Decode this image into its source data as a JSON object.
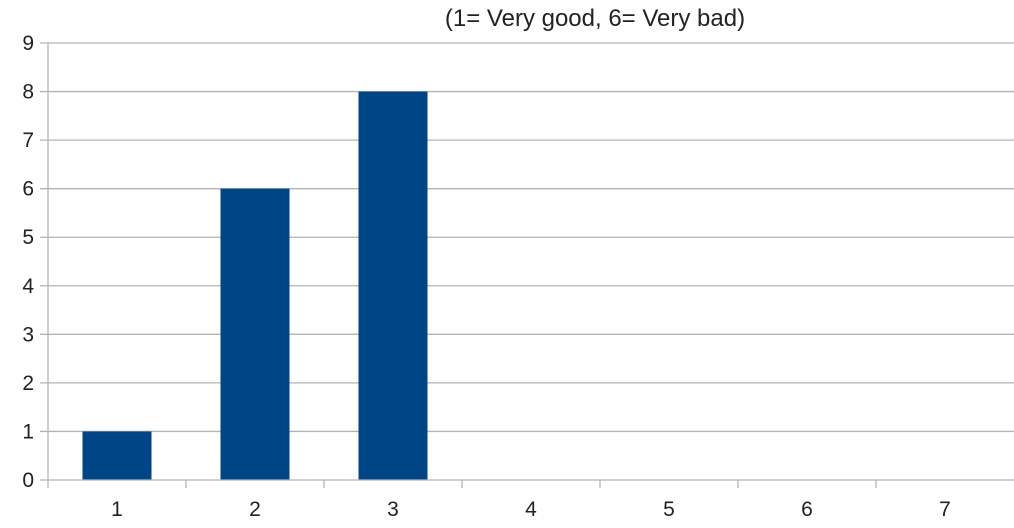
{
  "chart_data": {
    "type": "bar",
    "subtitle": "(1= Very good, 6= Very bad)",
    "categories": [
      "1",
      "2",
      "3",
      "4",
      "5",
      "6",
      "7"
    ],
    "values": [
      1,
      6,
      8,
      0,
      0,
      0,
      0
    ],
    "ylim": [
      0,
      9
    ],
    "yticks": [
      "0",
      "1",
      "2",
      "3",
      "4",
      "5",
      "6",
      "7",
      "8",
      "9"
    ],
    "grid": true,
    "legend": "none",
    "bar_color": "#004586",
    "grid_color": "#b3b3b3",
    "axis_color": "#b3b3b3"
  }
}
